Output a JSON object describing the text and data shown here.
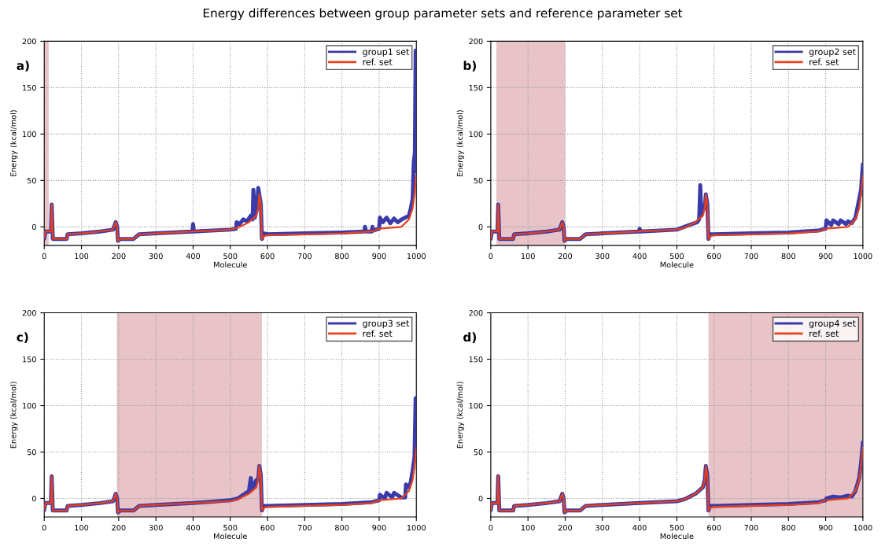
{
  "chart_data": [
    {
      "type": "line",
      "title": "Energy differences between group parameter sets and reference parameter set",
      "xlabel": "Molecule",
      "ylabel": "Energy (kcal/mol)",
      "annotations": [
        "a)"
      ],
      "xlim": [
        0,
        1000
      ],
      "ylim": [
        -20,
        200
      ],
      "xticks": [
        0,
        100,
        200,
        300,
        400,
        500,
        600,
        700,
        800,
        900,
        1000
      ],
      "yticks": [
        0,
        50,
        100,
        150,
        200
      ],
      "grid": true,
      "legend": "top right",
      "line_style": "solid",
      "marker": "none",
      "bands": [
        {
          "axis": "x",
          "from": 0,
          "to": 12,
          "color": "#e8c4c8"
        }
      ],
      "series": [
        {
          "name": "group1 set",
          "color": "#3a3aa8",
          "x": [
            0,
            3,
            18,
            20,
            23,
            60,
            63,
            100,
            150,
            185,
            192,
            196,
            198,
            205,
            240,
            255,
            300,
            398,
            400,
            402,
            500,
            515,
            517,
            525,
            535,
            545,
            555,
            560,
            562,
            566,
            572,
            575,
            578,
            582,
            585,
            590,
            600,
            700,
            800,
            860,
            862,
            865,
            880,
            882,
            884,
            900,
            902,
            910,
            920,
            930,
            940,
            950,
            960,
            970,
            980,
            985,
            990,
            993,
            996,
            998,
            1000
          ],
          "values": [
            -12,
            -5,
            -5,
            24,
            -13,
            -13,
            -8,
            -7,
            -5,
            -3,
            5,
            0,
            -15,
            -13,
            -13,
            -8,
            -7,
            -5,
            3,
            -5,
            -3,
            -2,
            5,
            3,
            8,
            6,
            12,
            8,
            40,
            10,
            20,
            42,
            35,
            25,
            -13,
            -7,
            -8,
            -7,
            -6,
            -5,
            0,
            -5,
            -5,
            0,
            -4,
            -2,
            10,
            5,
            10,
            4,
            9,
            5,
            8,
            10,
            12,
            20,
            30,
            70,
            80,
            190,
            60
          ]
        },
        {
          "name": "ref. set",
          "color": "#e8401c",
          "x": [
            0,
            3,
            18,
            20,
            23,
            60,
            63,
            100,
            150,
            185,
            192,
            196,
            198,
            205,
            240,
            255,
            300,
            400,
            500,
            520,
            550,
            570,
            575,
            578,
            582,
            585,
            590,
            600,
            700,
            800,
            880,
            900,
            960,
            980,
            990,
            995,
            1000
          ],
          "values": [
            -12,
            -5,
            -5,
            24,
            -13,
            -13,
            -8,
            -7,
            -5,
            -3,
            5,
            0,
            -15,
            -13,
            -13,
            -8,
            -7,
            -5,
            -3,
            -1,
            5,
            12,
            20,
            35,
            25,
            -13,
            -10,
            -9,
            -8,
            -7,
            -5,
            -2,
            0,
            8,
            20,
            35,
            55
          ]
        }
      ]
    },
    {
      "type": "line",
      "xlabel": "Molecule",
      "ylabel": "Energy (kcal/mol)",
      "annotations": [
        "b)"
      ],
      "xlim": [
        0,
        1000
      ],
      "ylim": [
        -20,
        200
      ],
      "xticks": [
        0,
        100,
        200,
        300,
        400,
        500,
        600,
        700,
        800,
        900,
        1000
      ],
      "yticks": [
        0,
        50,
        100,
        150,
        200
      ],
      "grid": true,
      "legend": "top right",
      "line_style": "solid",
      "marker": "none",
      "bands": [
        {
          "axis": "x",
          "from": 15,
          "to": 200,
          "color": "#e8c4c8"
        }
      ],
      "series": [
        {
          "name": "group2 set",
          "color": "#3a3aa8",
          "x": [
            0,
            3,
            18,
            20,
            23,
            60,
            63,
            100,
            150,
            185,
            192,
            196,
            198,
            205,
            240,
            255,
            300,
            398,
            400,
            402,
            500,
            520,
            540,
            555,
            560,
            563,
            566,
            570,
            575,
            578,
            582,
            585,
            590,
            600,
            700,
            800,
            880,
            900,
            902,
            915,
            920,
            935,
            940,
            955,
            960,
            970,
            980,
            990,
            995,
            1000
          ],
          "values": [
            -12,
            -5,
            -5,
            24,
            -13,
            -13,
            -8,
            -7,
            -5,
            -3,
            5,
            0,
            -15,
            -13,
            -13,
            -8,
            -7,
            -5,
            -2,
            -5,
            -3,
            0,
            3,
            5,
            8,
            45,
            12,
            20,
            20,
            35,
            25,
            -13,
            -8,
            -8,
            -7,
            -6,
            -4,
            -2,
            7,
            2,
            7,
            3,
            7,
            3,
            6,
            4,
            10,
            30,
            40,
            67
          ]
        },
        {
          "name": "ref. set",
          "color": "#e8401c",
          "x": [
            0,
            3,
            18,
            20,
            23,
            60,
            63,
            100,
            150,
            185,
            192,
            196,
            198,
            205,
            240,
            255,
            300,
            400,
            500,
            520,
            550,
            570,
            575,
            578,
            582,
            585,
            590,
            600,
            700,
            800,
            880,
            900,
            960,
            980,
            990,
            995,
            1000
          ],
          "values": [
            -12,
            -5,
            -5,
            24,
            -13,
            -13,
            -8,
            -7,
            -5,
            -3,
            5,
            0,
            -15,
            -13,
            -13,
            -8,
            -7,
            -5,
            -3,
            -1,
            5,
            12,
            20,
            35,
            25,
            -13,
            -10,
            -9,
            -8,
            -7,
            -5,
            -2,
            0,
            8,
            20,
            35,
            55
          ]
        }
      ]
    },
    {
      "type": "line",
      "xlabel": "Molecule",
      "ylabel": "Energy (kcal/mol)",
      "annotations": [
        "c)"
      ],
      "xlim": [
        0,
        1000
      ],
      "ylim": [
        -20,
        200
      ],
      "xticks": [
        0,
        100,
        200,
        300,
        400,
        500,
        600,
        700,
        800,
        900,
        1000
      ],
      "yticks": [
        0,
        50,
        100,
        150,
        200
      ],
      "grid": true,
      "legend": "top right",
      "line_style": "solid",
      "marker": "none",
      "bands": [
        {
          "axis": "x",
          "from": 195,
          "to": 585,
          "color": "#e8c4c8"
        }
      ],
      "series": [
        {
          "name": "group3 set",
          "color": "#3a3aa8",
          "x": [
            0,
            3,
            18,
            20,
            23,
            60,
            63,
            100,
            150,
            185,
            192,
            196,
            198,
            205,
            240,
            255,
            300,
            400,
            500,
            520,
            550,
            555,
            560,
            570,
            575,
            578,
            582,
            585,
            590,
            600,
            700,
            800,
            880,
            900,
            902,
            915,
            920,
            935,
            940,
            960,
            970,
            972,
            980,
            985,
            990,
            995,
            998,
            1000
          ],
          "values": [
            -12,
            -5,
            -5,
            24,
            -13,
            -13,
            -8,
            -7,
            -5,
            -3,
            5,
            0,
            -15,
            -13,
            -13,
            -8,
            -7,
            -5,
            -2,
            0,
            8,
            22,
            10,
            20,
            20,
            35,
            25,
            -13,
            -8,
            -8,
            -7,
            -6,
            -4,
            -2,
            4,
            0,
            6,
            1,
            6,
            1,
            1,
            15,
            12,
            18,
            30,
            45,
            108,
            60
          ]
        },
        {
          "name": "ref. set",
          "color": "#e8401c",
          "x": [
            0,
            3,
            18,
            20,
            23,
            60,
            63,
            100,
            150,
            185,
            192,
            196,
            198,
            205,
            240,
            255,
            300,
            400,
            500,
            520,
            550,
            570,
            575,
            578,
            582,
            585,
            590,
            600,
            700,
            800,
            880,
            900,
            960,
            980,
            990,
            995,
            1000
          ],
          "values": [
            -12,
            -5,
            -5,
            24,
            -13,
            -13,
            -8,
            -7,
            -5,
            -3,
            5,
            0,
            -15,
            -13,
            -13,
            -8,
            -7,
            -5,
            -3,
            -1,
            5,
            12,
            20,
            35,
            25,
            -13,
            -10,
            -9,
            -8,
            -7,
            -5,
            -2,
            0,
            8,
            20,
            35,
            55
          ]
        }
      ]
    },
    {
      "type": "line",
      "xlabel": "Molecule",
      "ylabel": "Energy (kcal/mol)",
      "annotations": [
        "d)"
      ],
      "xlim": [
        0,
        1000
      ],
      "ylim": [
        -20,
        200
      ],
      "xticks": [
        0,
        100,
        200,
        300,
        400,
        500,
        600,
        700,
        800,
        900,
        1000
      ],
      "yticks": [
        0,
        50,
        100,
        150,
        200
      ],
      "grid": true,
      "legend": "top right",
      "line_style": "solid",
      "marker": "none",
      "bands": [
        {
          "axis": "x",
          "from": 585,
          "to": 1000,
          "color": "#e8c4c8"
        }
      ],
      "series": [
        {
          "name": "group4 set",
          "color": "#3a3aa8",
          "x": [
            0,
            3,
            18,
            20,
            23,
            60,
            63,
            100,
            150,
            185,
            192,
            196,
            198,
            205,
            240,
            255,
            300,
            400,
            500,
            520,
            550,
            570,
            575,
            578,
            582,
            585,
            590,
            600,
            700,
            800,
            880,
            900,
            902,
            920,
            940,
            960,
            970,
            980,
            990,
            995,
            1000
          ],
          "values": [
            -12,
            -5,
            -5,
            24,
            -13,
            -13,
            -8,
            -7,
            -5,
            -3,
            5,
            0,
            -15,
            -13,
            -13,
            -8,
            -7,
            -5,
            -3,
            -1,
            5,
            12,
            20,
            35,
            25,
            -13,
            -8,
            -8,
            -7,
            -6,
            -4,
            -2,
            0,
            2,
            1,
            3,
            2,
            8,
            22,
            38,
            60
          ]
        },
        {
          "name": "ref. set",
          "color": "#e8401c",
          "x": [
            0,
            3,
            18,
            20,
            23,
            60,
            63,
            100,
            150,
            185,
            192,
            196,
            198,
            205,
            240,
            255,
            300,
            400,
            500,
            520,
            550,
            570,
            575,
            578,
            582,
            585,
            590,
            600,
            700,
            800,
            880,
            900,
            960,
            980,
            990,
            995,
            1000
          ],
          "values": [
            -12,
            -5,
            -5,
            24,
            -13,
            -13,
            -8,
            -7,
            -5,
            -3,
            5,
            0,
            -15,
            -13,
            -13,
            -8,
            -7,
            -5,
            -3,
            -1,
            5,
            12,
            20,
            35,
            25,
            -13,
            -10,
            -9,
            -8,
            -7,
            -5,
            -2,
            0,
            8,
            20,
            35,
            55
          ]
        }
      ]
    }
  ]
}
